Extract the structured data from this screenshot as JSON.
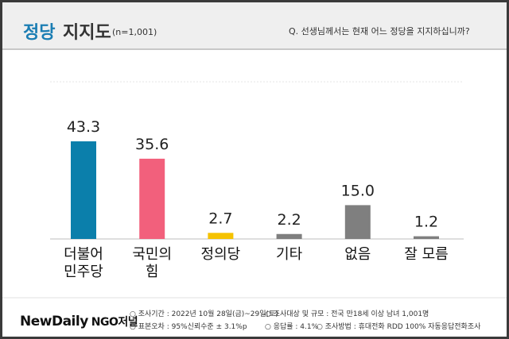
{
  "chart_data": {
    "type": "bar",
    "title_highlight": "정당",
    "title_rest": "지지도",
    "sample_size": "(n=1,001)",
    "question": "Q. 선생님께서는 현재 어느 정당을 지지하십니까?",
    "categories": [
      "더불어\n민주당",
      "국민의\n힘",
      "정의당",
      "기타",
      "없음",
      "잘 모름"
    ],
    "values": [
      43.3,
      35.6,
      2.7,
      2.2,
      15.0,
      1.2
    ],
    "value_labels": [
      "43.3",
      "35.6",
      "2.7",
      "2.2",
      "15.0",
      "1.2"
    ],
    "colors": [
      "#0b7fab",
      "#f2607c",
      "#f5c200",
      "#7f7f7f",
      "#7f7f7f",
      "#7f7f7f"
    ]
  },
  "footer": {
    "logo_main": "NewDaily",
    "logo_sub": "NGO저널",
    "notes": [
      "○ 조사기간 : 2022년 10월 28일(금)~29일(토)",
      "○ 조사대상 및 규모 : 전국 만18세 이상 남녀 1,001명",
      "○ 표본오차 : 95%신뢰수준 ± 3.1%p",
      "○ 응답률 : 4.1%",
      "○ 조사방법 : 휴대전화 RDD 100% 자동응답전화조사"
    ]
  }
}
